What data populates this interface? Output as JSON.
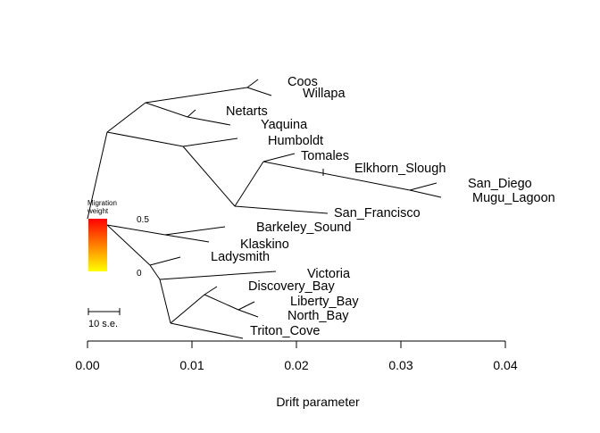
{
  "chart_data": {
    "type": "tree",
    "xlabel": "Drift parameter",
    "xlim": [
      0,
      0.04
    ],
    "x_ticks": [
      0.0,
      0.01,
      0.02,
      0.03,
      0.04
    ],
    "x_tick_labels": [
      "0.00",
      "0.01",
      "0.02",
      "0.03",
      "0.04"
    ],
    "tips": [
      {
        "name": "Coos",
        "drift": 0.0163
      },
      {
        "name": "Willapa",
        "drift": 0.0175
      },
      {
        "name": "Netarts",
        "drift": 0.0102
      },
      {
        "name": "Yaquina",
        "drift": 0.0136
      },
      {
        "name": "Humboldt",
        "drift": 0.0143
      },
      {
        "name": "Tomales",
        "drift": 0.0197
      },
      {
        "name": "Elkhorn_Slough",
        "drift": 0.0225
      },
      {
        "name": "San_Diego",
        "drift": 0.0334
      },
      {
        "name": "Mugu_Lagoon",
        "drift": 0.0338
      },
      {
        "name": "San_Francisco",
        "drift": 0.0143
      },
      {
        "name": "Barkeley_Sound",
        "drift": 0.0131
      },
      {
        "name": "Klaskino",
        "drift": 0.0116
      },
      {
        "name": "Ladysmith",
        "drift": 0.0088
      },
      {
        "name": "Victoria",
        "drift": 0.018
      },
      {
        "name": "Discovery_Bay",
        "drift": 0.0125
      },
      {
        "name": "Liberty_Bay",
        "drift": 0.0163
      },
      {
        "name": "North_Bay",
        "drift": 0.0163
      },
      {
        "name": "Triton_Cove",
        "drift": 0.0127
      }
    ],
    "legend": {
      "title_line1": "Migration",
      "title_line2": "weight",
      "max_label": "0.5",
      "min_label": "0",
      "gradient_top": "#ff0000",
      "gradient_bottom": "#ffff00"
    },
    "scale_bar": {
      "label": "10 s.e."
    }
  }
}
